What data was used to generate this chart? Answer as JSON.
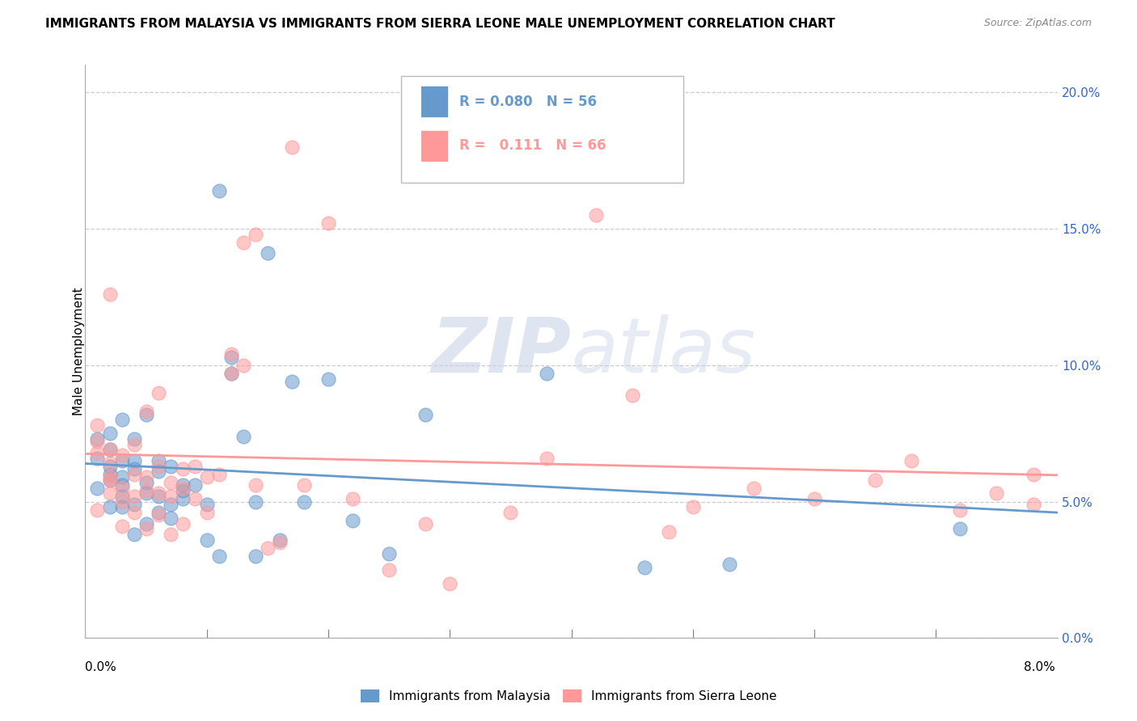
{
  "title": "IMMIGRANTS FROM MALAYSIA VS IMMIGRANTS FROM SIERRA LEONE MALE UNEMPLOYMENT CORRELATION CHART",
  "source": "Source: ZipAtlas.com",
  "ylabel": "Male Unemployment",
  "right_yticks": [
    "0.0%",
    "5.0%",
    "10.0%",
    "15.0%",
    "20.0%"
  ],
  "right_ytick_vals": [
    0.0,
    0.05,
    0.1,
    0.15,
    0.2
  ],
  "xlim": [
    0.0,
    0.08
  ],
  "ylim": [
    0.0,
    0.21
  ],
  "malaysia_color": "#6699CC",
  "sierra_leone_color": "#FF9999",
  "malaysia_R": "0.080",
  "malaysia_N": 56,
  "sierra_leone_R": "0.111",
  "sierra_leone_N": 66,
  "watermark_zip": "ZIP",
  "watermark_atlas": "atlas",
  "malaysia_x": [
    0.001,
    0.001,
    0.002,
    0.002,
    0.002,
    0.002,
    0.003,
    0.003,
    0.003,
    0.003,
    0.004,
    0.004,
    0.004,
    0.004,
    0.005,
    0.005,
    0.005,
    0.006,
    0.006,
    0.006,
    0.007,
    0.007,
    0.008,
    0.008,
    0.009,
    0.01,
    0.011,
    0.011,
    0.012,
    0.013,
    0.014,
    0.015,
    0.016,
    0.018,
    0.02,
    0.022,
    0.025,
    0.028,
    0.038,
    0.046,
    0.001,
    0.002,
    0.002,
    0.003,
    0.003,
    0.004,
    0.005,
    0.006,
    0.007,
    0.008,
    0.01,
    0.012,
    0.014,
    0.017,
    0.053,
    0.072
  ],
  "malaysia_y": [
    0.066,
    0.073,
    0.058,
    0.063,
    0.069,
    0.075,
    0.052,
    0.056,
    0.065,
    0.08,
    0.049,
    0.062,
    0.073,
    0.038,
    0.053,
    0.057,
    0.082,
    0.046,
    0.065,
    0.052,
    0.044,
    0.063,
    0.051,
    0.056,
    0.056,
    0.036,
    0.03,
    0.164,
    0.097,
    0.074,
    0.03,
    0.141,
    0.036,
    0.05,
    0.095,
    0.043,
    0.031,
    0.082,
    0.097,
    0.026,
    0.055,
    0.048,
    0.06,
    0.059,
    0.048,
    0.065,
    0.042,
    0.061,
    0.049,
    0.054,
    0.049,
    0.103,
    0.05,
    0.094,
    0.027,
    0.04
  ],
  "sierra_leone_x": [
    0.001,
    0.001,
    0.001,
    0.002,
    0.002,
    0.002,
    0.002,
    0.003,
    0.003,
    0.003,
    0.004,
    0.004,
    0.004,
    0.005,
    0.005,
    0.005,
    0.006,
    0.006,
    0.006,
    0.007,
    0.007,
    0.008,
    0.008,
    0.009,
    0.009,
    0.01,
    0.011,
    0.012,
    0.012,
    0.013,
    0.014,
    0.015,
    0.016,
    0.018,
    0.02,
    0.022,
    0.025,
    0.028,
    0.03,
    0.035,
    0.001,
    0.002,
    0.002,
    0.003,
    0.004,
    0.005,
    0.006,
    0.007,
    0.008,
    0.01,
    0.013,
    0.014,
    0.017,
    0.038,
    0.045,
    0.048,
    0.05,
    0.055,
    0.06,
    0.065,
    0.068,
    0.072,
    0.075,
    0.042,
    0.078,
    0.078
  ],
  "sierra_leone_y": [
    0.068,
    0.072,
    0.078,
    0.053,
    0.059,
    0.064,
    0.126,
    0.041,
    0.055,
    0.067,
    0.052,
    0.06,
    0.071,
    0.04,
    0.054,
    0.083,
    0.045,
    0.063,
    0.09,
    0.038,
    0.057,
    0.042,
    0.062,
    0.051,
    0.063,
    0.059,
    0.06,
    0.097,
    0.104,
    0.1,
    0.148,
    0.033,
    0.035,
    0.056,
    0.152,
    0.051,
    0.025,
    0.042,
    0.02,
    0.046,
    0.047,
    0.069,
    0.058,
    0.05,
    0.046,
    0.059,
    0.053,
    0.052,
    0.055,
    0.046,
    0.145,
    0.056,
    0.18,
    0.066,
    0.089,
    0.039,
    0.048,
    0.055,
    0.051,
    0.058,
    0.065,
    0.047,
    0.053,
    0.155,
    0.049,
    0.06
  ]
}
